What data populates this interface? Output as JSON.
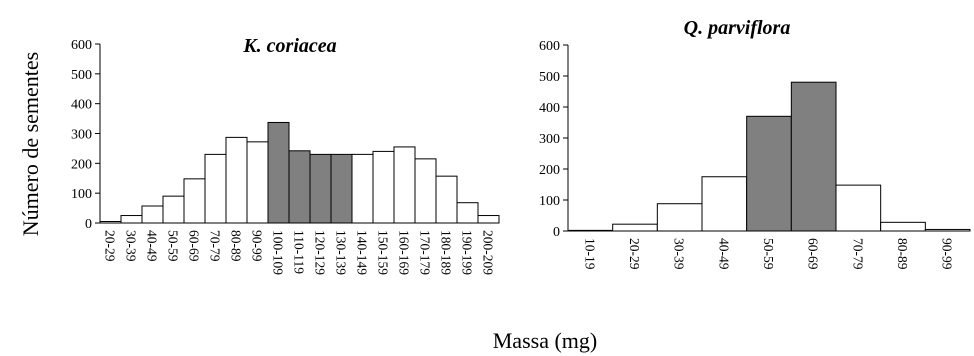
{
  "ylabel": "Número de sementes",
  "xlabel": "Massa (mg)",
  "chart_data": [
    {
      "type": "bar",
      "title": "K. coriacea",
      "categories": [
        "20-29",
        "30-39",
        "40-49",
        "50-59",
        "60-69",
        "70-79",
        "80-89",
        "90-99",
        "100-109",
        "110-119",
        "120-129",
        "130-139",
        "140-149",
        "150-159",
        "160-169",
        "170-179",
        "180-189",
        "190-199",
        "200-209"
      ],
      "values": [
        5,
        25,
        57,
        90,
        148,
        230,
        287,
        272,
        337,
        242,
        230,
        230,
        230,
        240,
        255,
        215,
        157,
        68,
        25
      ],
      "highlighted_categories": [
        "100-109",
        "110-119",
        "120-129",
        "130-139"
      ],
      "yticks": [
        0,
        100,
        200,
        300,
        400,
        500,
        600
      ],
      "ylim": [
        0,
        600
      ],
      "xlabel": "Massa (mg)",
      "ylabel": "Número de sementes",
      "grid": false,
      "legend": "none"
    },
    {
      "type": "bar",
      "title": "Q. parviflora",
      "categories": [
        "10-19",
        "20-29",
        "30-39",
        "40-49",
        "50-59",
        "60-69",
        "70-79",
        "80-89",
        "90-99"
      ],
      "values": [
        2,
        22,
        88,
        175,
        370,
        480,
        148,
        28,
        5
      ],
      "highlighted_categories": [
        "50-59",
        "60-69"
      ],
      "yticks": [
        0,
        100,
        200,
        300,
        400,
        500,
        600
      ],
      "ylim": [
        0,
        600
      ],
      "xlabel": "Massa (mg)",
      "ylabel": "",
      "grid": false,
      "legend": "none"
    }
  ],
  "colors": {
    "bar_default": "#ffffff",
    "bar_highlight": "#808080",
    "bar_stroke": "#000000",
    "axis": "#000000"
  }
}
